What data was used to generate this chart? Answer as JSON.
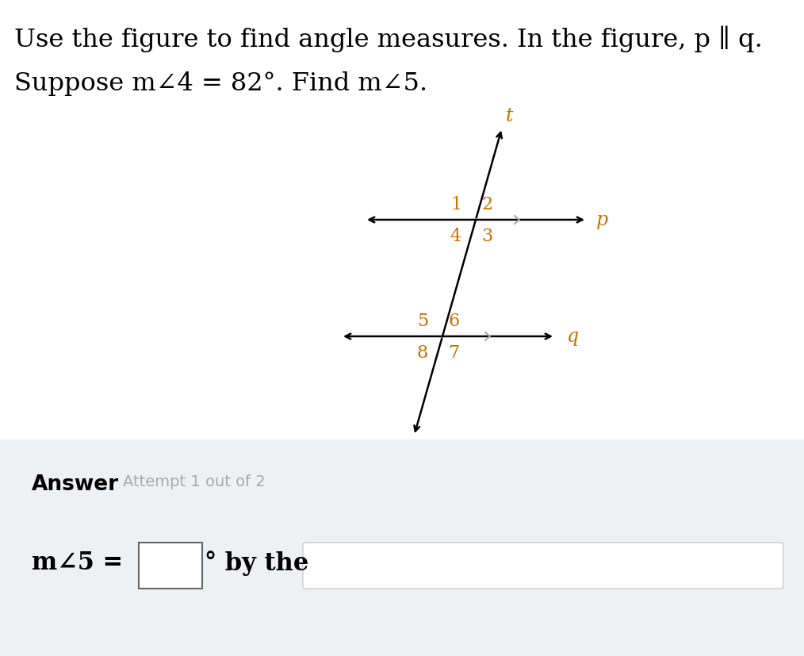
{
  "background_color": "#ffffff",
  "answer_section_bg": "#eef0f4",
  "number_color": "#c87000",
  "label_color": "#c87000",
  "line_color": "#000000",
  "tick_color": "#aaaaaa",
  "fig_width": 10.14,
  "fig_height": 8.28,
  "title_line1": "Use the figure to find angle measures. In the figure, p ∥ q.",
  "title_line2": "Suppose m∠4 = 82°. Find m∠5.",
  "answer_bold": "Answer",
  "attempt_text": "Attempt 1 out of 2",
  "answer_eq": "m∠5 =",
  "by_the": "° by the"
}
